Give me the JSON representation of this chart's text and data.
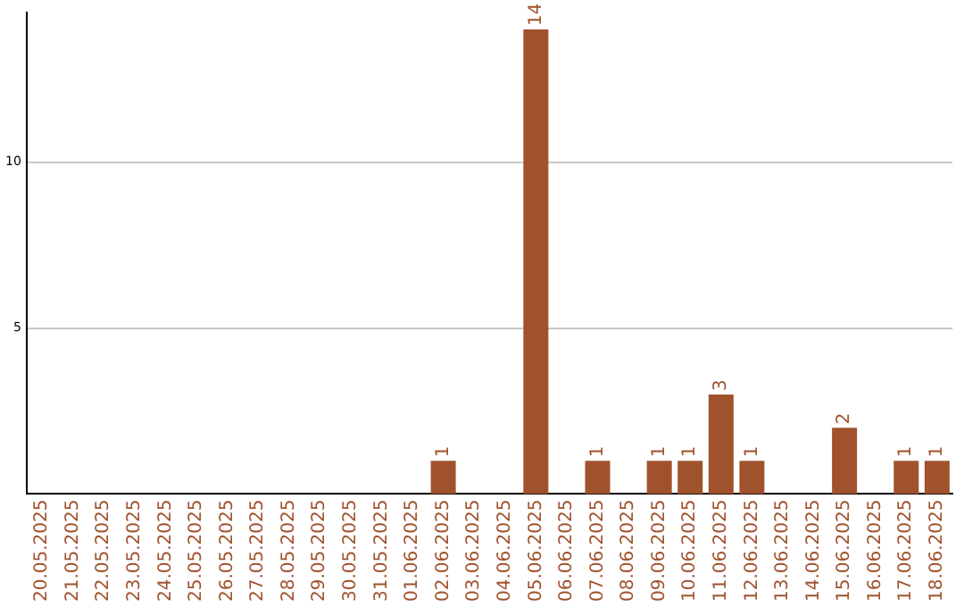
{
  "chart_data": {
    "type": "bar",
    "categories": [
      "20.05.2025",
      "21.05.2025",
      "22.05.2025",
      "23.05.2025",
      "24.05.2025",
      "25.05.2025",
      "26.05.2025",
      "27.05.2025",
      "28.05.2025",
      "29.05.2025",
      "30.05.2025",
      "31.05.2025",
      "01.06.2025",
      "02.06.2025",
      "03.06.2025",
      "04.06.2025",
      "05.06.2025",
      "06.06.2025",
      "07.06.2025",
      "08.06.2025",
      "09.06.2025",
      "10.06.2025",
      "11.06.2025",
      "12.06.2025",
      "13.06.2025",
      "14.06.2025",
      "15.06.2025",
      "16.06.2025",
      "17.06.2025",
      "18.06.2025"
    ],
    "values": [
      0,
      0,
      0,
      0,
      0,
      0,
      0,
      0,
      0,
      0,
      0,
      0,
      0,
      1,
      0,
      0,
      14,
      0,
      1,
      0,
      1,
      1,
      3,
      1,
      0,
      0,
      2,
      0,
      1,
      1
    ],
    "value_labels": [
      null,
      null,
      null,
      null,
      null,
      null,
      null,
      null,
      null,
      null,
      null,
      null,
      null,
      "1",
      null,
      null,
      "14",
      null,
      "1",
      null,
      "1",
      "1",
      "3",
      "1",
      null,
      null,
      "2",
      null,
      "1",
      "1"
    ],
    "color": "#a0522d",
    "ylim": [
      0,
      14.5
    ],
    "yticks": [
      5,
      10
    ],
    "grid": "y",
    "legend": false
  }
}
